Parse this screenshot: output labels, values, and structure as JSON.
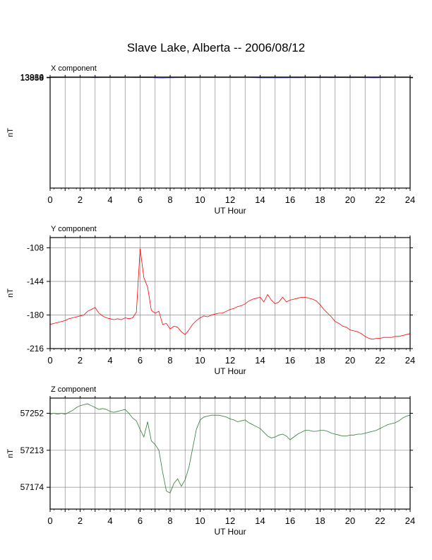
{
  "title": "Slave Lake, Alberta -- 2006/08/12",
  "chart_data": [
    {
      "type": "line",
      "panel_title": "X component",
      "xlabel": "UT Hour",
      "ylabel": "nT",
      "xlim": [
        0,
        24
      ],
      "ylim": [
        1383,
        13930
      ],
      "yticks": [
        13858,
        13884,
        13910
      ],
      "xticks": [
        0,
        2,
        4,
        6,
        8,
        10,
        12,
        14,
        16,
        18,
        20,
        22,
        24
      ],
      "grid": true,
      "color": "#0000ff",
      "series": [
        {
          "x": [
            0,
            0.25,
            0.5,
            0.75,
            1.0,
            1.25,
            1.5,
            1.75,
            2.0,
            2.25,
            2.5,
            2.75,
            3.0,
            3.25,
            3.5,
            3.75,
            4.0,
            4.25,
            4.5,
            4.75,
            5.0,
            5.25,
            5.5,
            5.75,
            6.0,
            6.25,
            6.5,
            6.75,
            7.0,
            7.25,
            7.5,
            7.75,
            8.0,
            8.25,
            8.5,
            8.75,
            9.0,
            9.25,
            9.5,
            9.75,
            10.0,
            10.25,
            10.5,
            10.75,
            11.0,
            11.25,
            11.5,
            11.75,
            12.0,
            12.25,
            12.5,
            12.75,
            13.0,
            13.25,
            13.5,
            13.75,
            14.0,
            14.25,
            14.5,
            14.75,
            15.0,
            15.25,
            15.5,
            15.75,
            16.0,
            16.25,
            16.5,
            16.75,
            17.0,
            17.25,
            17.5,
            17.75,
            18.0,
            18.25,
            18.5,
            18.75,
            19.0,
            19.25,
            19.5,
            19.75,
            20.0,
            20.25,
            20.5,
            20.75,
            21.0,
            21.25,
            21.5,
            21.75,
            22.0,
            22.25,
            22.5,
            22.75,
            23.0,
            23.25,
            23.5,
            23.75,
            24.0
          ],
          "y": [
            13880,
            13884,
            13887,
            13889,
            13891,
            13895,
            13899,
            13901,
            13905,
            13912,
            13906,
            13888,
            13876,
            13879,
            13887,
            13893,
            13891,
            13894,
            13895,
            13892,
            13897,
            13909,
            13893,
            13884,
            13888,
            13886,
            13890,
            13882,
            13863,
            13852,
            13846,
            13862,
            13860,
            13875,
            13884,
            13886,
            13889,
            13893,
            13900,
            13905,
            13904,
            13902,
            13901,
            13899,
            13900,
            13902,
            13901,
            13898,
            13895,
            13894,
            13895,
            13897,
            13898,
            13892,
            13880,
            13872,
            13868,
            13866,
            13867,
            13870,
            13873,
            13868,
            13864,
            13870,
            13871,
            13873,
            13877,
            13878,
            13879,
            13880,
            13881,
            13880,
            13878,
            13879,
            13879,
            13878,
            13879,
            13880,
            13881,
            13880,
            13878,
            13883,
            13886,
            13880,
            13876,
            13873,
            13870,
            13866,
            13872,
            13880,
            13888,
            13894,
            13902,
            13900,
            13898,
            13897,
            13899
          ]
        }
      ]
    },
    {
      "type": "line",
      "panel_title": "Y component",
      "xlabel": "UT Hour",
      "ylabel": "nT",
      "xlim": [
        0,
        24
      ],
      "ylim": [
        -216,
        -97
      ],
      "yticks": [
        -216,
        -180,
        -144,
        -108
      ],
      "xticks": [
        0,
        2,
        4,
        6,
        8,
        10,
        12,
        14,
        16,
        18,
        20,
        22,
        24
      ],
      "grid": true,
      "color": "#ff0000",
      "series": [
        {
          "x": [
            0,
            0.25,
            0.5,
            0.75,
            1.0,
            1.25,
            1.5,
            1.75,
            2.0,
            2.25,
            2.5,
            2.75,
            3.0,
            3.25,
            3.5,
            3.75,
            4.0,
            4.25,
            4.5,
            4.75,
            5.0,
            5.25,
            5.5,
            5.75,
            6.0,
            6.25,
            6.5,
            6.75,
            7.0,
            7.25,
            7.5,
            7.75,
            8.0,
            8.25,
            8.5,
            8.75,
            9.0,
            9.25,
            9.5,
            9.75,
            10.0,
            10.25,
            10.5,
            10.75,
            11.0,
            11.25,
            11.5,
            11.75,
            12.0,
            12.25,
            12.5,
            12.75,
            13.0,
            13.25,
            13.5,
            13.75,
            14.0,
            14.25,
            14.5,
            14.75,
            15.0,
            15.25,
            15.5,
            15.75,
            16.0,
            16.25,
            16.5,
            16.75,
            17.0,
            17.25,
            17.5,
            17.75,
            18.0,
            18.25,
            18.5,
            18.75,
            19.0,
            19.25,
            19.5,
            19.75,
            20.0,
            20.25,
            20.5,
            20.75,
            21.0,
            21.25,
            21.5,
            21.75,
            22.0,
            22.25,
            22.5,
            22.75,
            23.0,
            23.25,
            23.5,
            23.75,
            24.0
          ],
          "y": [
            -190,
            -189,
            -188,
            -187,
            -186,
            -184,
            -183,
            -182,
            -181,
            -180,
            -176,
            -174,
            -172,
            -178,
            -181,
            -183,
            -184,
            -185,
            -184,
            -185,
            -183,
            -184,
            -183,
            -177,
            -109,
            -140,
            -150,
            -175,
            -178,
            -176,
            -190,
            -189,
            -195,
            -192,
            -193,
            -198,
            -201,
            -196,
            -190,
            -186,
            -183,
            -181,
            -182,
            -180,
            -179,
            -178,
            -178,
            -176,
            -174,
            -173,
            -171,
            -170,
            -168,
            -165,
            -163,
            -162,
            -161,
            -166,
            -158,
            -164,
            -168,
            -166,
            -161,
            -166,
            -164,
            -163,
            -162,
            -161,
            -161,
            -162,
            -163,
            -165,
            -169,
            -174,
            -178,
            -182,
            -187,
            -189,
            -192,
            -193,
            -196,
            -197,
            -198,
            -200,
            -203,
            -205,
            -206,
            -205,
            -205,
            -204,
            -204,
            -204,
            -203,
            -203,
            -202,
            -201,
            -200
          ]
        }
      ]
    },
    {
      "type": "line",
      "panel_title": "Z component",
      "xlabel": "UT Hour",
      "ylabel": "nT",
      "xlim": [
        0,
        24
      ],
      "ylim": [
        57151,
        57268
      ],
      "yticks": [
        57174,
        57213,
        57252
      ],
      "xticks": [
        0,
        2,
        4,
        6,
        8,
        10,
        12,
        14,
        16,
        18,
        20,
        22,
        24
      ],
      "grid": true,
      "color": "#2e7d32",
      "series": [
        {
          "x": [
            0,
            0.25,
            0.5,
            0.75,
            1.0,
            1.25,
            1.5,
            1.75,
            2.0,
            2.25,
            2.5,
            2.75,
            3.0,
            3.25,
            3.5,
            3.75,
            4.0,
            4.25,
            4.5,
            4.75,
            5.0,
            5.25,
            5.5,
            5.75,
            6.0,
            6.25,
            6.5,
            6.75,
            7.0,
            7.25,
            7.5,
            7.75,
            8.0,
            8.25,
            8.5,
            8.75,
            9.0,
            9.25,
            9.5,
            9.75,
            10.0,
            10.25,
            10.5,
            10.75,
            11.0,
            11.25,
            11.5,
            11.75,
            12.0,
            12.25,
            12.5,
            12.75,
            13.0,
            13.25,
            13.5,
            13.75,
            14.0,
            14.25,
            14.5,
            14.75,
            15.0,
            15.25,
            15.5,
            15.75,
            16.0,
            16.25,
            16.5,
            16.75,
            17.0,
            17.25,
            17.5,
            17.75,
            18.0,
            18.25,
            18.5,
            18.75,
            19.0,
            19.25,
            19.5,
            19.75,
            20.0,
            20.25,
            20.5,
            20.75,
            21.0,
            21.25,
            21.5,
            21.75,
            22.0,
            22.25,
            22.5,
            22.75,
            23.0,
            23.25,
            23.5,
            23.75,
            24.0
          ],
          "y": [
            57251,
            57252,
            57251,
            57252,
            57251,
            57253,
            57255,
            57258,
            57260,
            57261,
            57262,
            57260,
            57258,
            57256,
            57257,
            57256,
            57254,
            57253,
            57254,
            57255,
            57256,
            57252,
            57247,
            57244,
            57235,
            57227,
            57243,
            57223,
            57219,
            57213,
            57190,
            57170,
            57168,
            57178,
            57183,
            57175,
            57182,
            57195,
            57215,
            57235,
            57245,
            57248,
            57249,
            57250,
            57250,
            57250,
            57249,
            57248,
            57246,
            57245,
            57243,
            57244,
            57245,
            57242,
            57240,
            57238,
            57236,
            57232,
            57228,
            57226,
            57227,
            57229,
            57230,
            57228,
            57224,
            57227,
            57230,
            57232,
            57234,
            57234,
            57233,
            57233,
            57234,
            57234,
            57233,
            57231,
            57230,
            57229,
            57228,
            57228,
            57229,
            57229,
            57230,
            57230,
            57231,
            57232,
            57233,
            57234,
            57236,
            57238,
            57240,
            57241,
            57242,
            57244,
            57247,
            57249,
            57250
          ]
        }
      ]
    }
  ]
}
